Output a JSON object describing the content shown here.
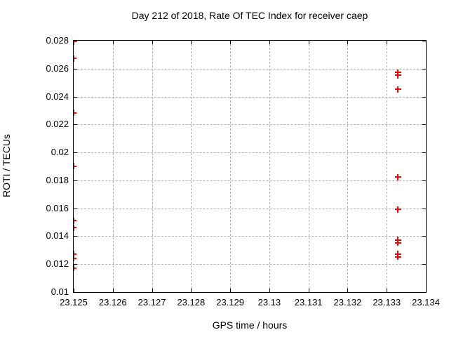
{
  "title": "Day 212 of 2018, Rate Of TEC Index for receiver caep",
  "colors": {
    "marker": "#ff0000",
    "grid": "#b3b3b3",
    "axis": "#000000",
    "background": "#ffffff",
    "text": "#000000"
  },
  "chart_data": {
    "type": "scatter",
    "title": "Day 212 of 2018, Rate Of TEC Index for receiver caep",
    "xlabel": "GPS time / hours",
    "ylabel": "ROTI / TECUs",
    "xlim": [
      23.125,
      23.134
    ],
    "ylim": [
      0.01,
      0.028
    ],
    "x_tick_values": [
      23.125,
      23.126,
      23.127,
      23.128,
      23.129,
      23.13,
      23.131,
      23.132,
      23.133,
      23.134
    ],
    "x_tick_labels": [
      "23.125",
      "23.126",
      "23.127",
      "23.128",
      "23.129",
      "23.13",
      "23.131",
      "23.132",
      "23.133",
      "23.134"
    ],
    "y_tick_values": [
      0.01,
      0.012,
      0.014,
      0.016,
      0.018,
      0.02,
      0.022,
      0.024,
      0.026,
      0.028
    ],
    "y_tick_labels": [
      "0.01",
      "0.012",
      "0.014",
      "0.016",
      "0.018",
      "0.02",
      "0.022",
      "0.024",
      "0.026",
      "0.028"
    ],
    "grid": true,
    "legend": "none",
    "marker_style": "plus",
    "series": [
      {
        "name": "ROTI",
        "points": [
          [
            23.125,
            0.0279
          ],
          [
            23.125,
            0.0267
          ],
          [
            23.125,
            0.0228
          ],
          [
            23.125,
            0.019
          ],
          [
            23.125,
            0.0151
          ],
          [
            23.125,
            0.0146
          ],
          [
            23.125,
            0.0127
          ],
          [
            23.125,
            0.0124
          ],
          [
            23.125,
            0.0117
          ],
          [
            23.1333,
            0.0257
          ],
          [
            23.1333,
            0.0255
          ],
          [
            23.1333,
            0.0245
          ],
          [
            23.1333,
            0.0182
          ],
          [
            23.1333,
            0.0159
          ],
          [
            23.1333,
            0.0137
          ],
          [
            23.1333,
            0.0135
          ],
          [
            23.1333,
            0.0127
          ],
          [
            23.1333,
            0.0125
          ]
        ]
      }
    ]
  }
}
